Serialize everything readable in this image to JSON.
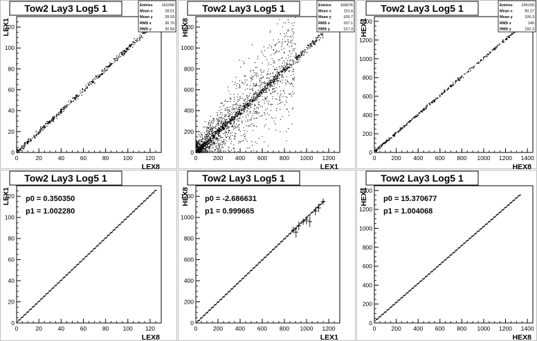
{
  "chart_data": [
    {
      "type": "scatter",
      "title": "Tow2 Lay3 Log5 1",
      "xlabel": "LEX8",
      "ylabel": "LEX1",
      "xlim": [
        0,
        130
      ],
      "ylim": [
        0,
        130
      ],
      "xticks": [
        0,
        20,
        40,
        60,
        80,
        100,
        120
      ],
      "yticks": [
        0,
        20,
        40,
        60,
        80,
        100,
        120
      ],
      "stats": [
        {
          "label": "Entries",
          "value": "161930"
        },
        {
          "label": "Mean x",
          "value": "28.51"
        },
        {
          "label": "Mean y",
          "value": "28.93"
        },
        {
          "label": "RMS x",
          "value": "30.75"
        },
        {
          "label": "RMS y",
          "value": "30.84"
        }
      ],
      "trend": {
        "slope": 1.0,
        "intercept": 0.35,
        "xmin": 0,
        "xmax": 128,
        "spread": 1.3,
        "density": 500,
        "outliers": 0
      }
    },
    {
      "type": "scatter",
      "title": "Tow2 Lay3 Log5 1",
      "xlabel": "LEX1",
      "ylabel": "HEX8",
      "xlim": [
        0,
        1300
      ],
      "ylim": [
        0,
        1300
      ],
      "xticks": [
        0,
        200,
        400,
        600,
        800,
        1000,
        1200
      ],
      "yticks": [
        0,
        200,
        400,
        600,
        800,
        1000,
        1200
      ],
      "stats": [
        {
          "label": "Entries",
          "value": "166676"
        },
        {
          "label": "Mean x",
          "value": "110.4"
        },
        {
          "label": "Mean y",
          "value": "109.7"
        },
        {
          "label": "RMS x",
          "value": "157.1"
        },
        {
          "label": "RMS y",
          "value": "157.4"
        }
      ],
      "trend": {
        "slope": 1.0,
        "intercept": -2.7,
        "xmin": 0,
        "xmax": 1150,
        "spread": 18,
        "density": 700,
        "outliers": 1600
      }
    },
    {
      "type": "scatter",
      "title": "Tow2 Lay3 Log5 1",
      "xlabel": "HEX8",
      "ylabel": "HEX1",
      "xlim": [
        0,
        1450
      ],
      "ylim": [
        0,
        1450
      ],
      "xticks": [
        0,
        200,
        400,
        600,
        800,
        1000,
        1200,
        1400
      ],
      "yticks": [
        0,
        200,
        400,
        600,
        800,
        1000,
        1200,
        1400
      ],
      "stats": [
        {
          "label": "Entries",
          "value": "205159"
        },
        {
          "label": "Mean x",
          "value": "90.27"
        },
        {
          "label": "Mean y",
          "value": "106.3"
        },
        {
          "label": "RMS x",
          "value": "149"
        },
        {
          "label": "RMS y",
          "value": "150.3"
        }
      ],
      "trend": {
        "slope": 1.0,
        "intercept": 15.4,
        "xmin": 0,
        "xmax": 1420,
        "spread": 8,
        "density": 420,
        "outliers": 0
      }
    },
    {
      "type": "line",
      "title": "Tow2 Lay3 Log5 1",
      "xlabel": "LEX8",
      "ylabel": "LEX1",
      "xlim": [
        0,
        130
      ],
      "ylim": [
        0,
        130
      ],
      "xticks": [
        0,
        20,
        40,
        60,
        80,
        100,
        120
      ],
      "yticks": [
        0,
        20,
        40,
        60,
        80,
        100,
        120
      ],
      "fit_text": [
        "p0 = 0.350350",
        "p1 = 1.002280"
      ],
      "fit": {
        "p0": 0.35035,
        "p1": 1.00228,
        "xmin": 0,
        "xmax": 125,
        "step": 2.5,
        "err": 0.3
      }
    },
    {
      "type": "line",
      "title": "Tow2 Lay3 Log5 1",
      "xlabel": "LEX1",
      "ylabel": "HEX8",
      "xlim": [
        0,
        1300
      ],
      "ylim": [
        0,
        1300
      ],
      "xticks": [
        0,
        200,
        400,
        600,
        800,
        1000,
        1200
      ],
      "yticks": [
        0,
        200,
        400,
        600,
        800,
        1000,
        1200
      ],
      "fit_text": [
        "p0 = -2.686631",
        "p1 = 0.999665"
      ],
      "fit": {
        "p0": -2.686631,
        "p1": 0.999665,
        "xmin": 0,
        "xmax": 1160,
        "step": 25,
        "err": 5
      },
      "large_error_points": [
        {
          "x": 880,
          "y": 880,
          "ex": 20,
          "ey": 30
        },
        {
          "x": 905,
          "y": 860,
          "ex": 20,
          "ey": 50
        },
        {
          "x": 930,
          "y": 920,
          "ex": 20,
          "ey": 40
        },
        {
          "x": 970,
          "y": 960,
          "ex": 20,
          "ey": 30
        },
        {
          "x": 1000,
          "y": 975,
          "ex": 20,
          "ey": 40
        },
        {
          "x": 1030,
          "y": 960,
          "ex": 20,
          "ey": 50
        },
        {
          "x": 1080,
          "y": 1060,
          "ex": 20,
          "ey": 40
        },
        {
          "x": 1110,
          "y": 1090,
          "ex": 20,
          "ey": 40
        },
        {
          "x": 1150,
          "y": 1150,
          "ex": 20,
          "ey": 30
        }
      ]
    },
    {
      "type": "line",
      "title": "Tow2 Lay3 Log5 1",
      "xlabel": "HEX8",
      "ylabel": "HEX1",
      "xlim": [
        0,
        1450
      ],
      "ylim": [
        0,
        1450
      ],
      "xticks": [
        0,
        200,
        400,
        600,
        800,
        1000,
        1200,
        1400
      ],
      "yticks": [
        0,
        200,
        400,
        600,
        800,
        1000,
        1200,
        1400
      ],
      "fit_text": [
        "p0 = 15.370677",
        "p1 = 1.004068"
      ],
      "fit": {
        "p0": 15.370677,
        "p1": 1.004068,
        "xmin": 0,
        "xmax": 1340,
        "step": 25,
        "err": 5
      }
    }
  ]
}
